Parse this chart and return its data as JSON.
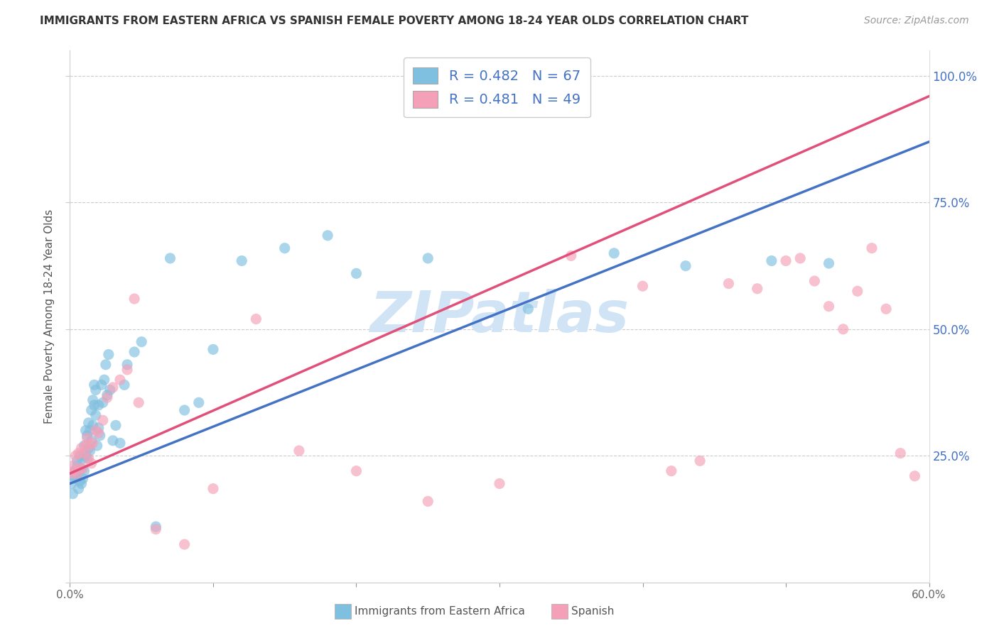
{
  "title": "IMMIGRANTS FROM EASTERN AFRICA VS SPANISH FEMALE POVERTY AMONG 18-24 YEAR OLDS CORRELATION CHART",
  "source": "Source: ZipAtlas.com",
  "ylabel": "Female Poverty Among 18-24 Year Olds",
  "x_min": 0.0,
  "x_max": 0.6,
  "y_min": 0.0,
  "y_max": 1.05,
  "legend_blue_R": "0.482",
  "legend_blue_N": "67",
  "legend_pink_R": "0.481",
  "legend_pink_N": "49",
  "legend_label_blue": "Immigrants from Eastern Africa",
  "legend_label_pink": "Spanish",
  "blue_color": "#7fbfdf",
  "pink_color": "#f4a0b8",
  "trendline_color_blue": "#4472c4",
  "trendline_color_pink": "#e0507a",
  "watermark_text": "ZIPatlas",
  "watermark_color": "#d0e4f5",
  "blue_scatter_x": [
    0.001,
    0.002,
    0.003,
    0.004,
    0.004,
    0.005,
    0.005,
    0.005,
    0.006,
    0.006,
    0.007,
    0.007,
    0.008,
    0.008,
    0.009,
    0.009,
    0.01,
    0.01,
    0.011,
    0.011,
    0.012,
    0.012,
    0.013,
    0.013,
    0.014,
    0.014,
    0.015,
    0.015,
    0.016,
    0.016,
    0.017,
    0.017,
    0.018,
    0.018,
    0.019,
    0.02,
    0.02,
    0.021,
    0.022,
    0.023,
    0.024,
    0.025,
    0.026,
    0.027,
    0.028,
    0.03,
    0.032,
    0.035,
    0.038,
    0.04,
    0.045,
    0.05,
    0.06,
    0.07,
    0.08,
    0.09,
    0.1,
    0.12,
    0.15,
    0.18,
    0.2,
    0.25,
    0.32,
    0.38,
    0.43,
    0.49,
    0.53
  ],
  "blue_scatter_y": [
    0.195,
    0.175,
    0.21,
    0.205,
    0.22,
    0.215,
    0.23,
    0.24,
    0.185,
    0.22,
    0.2,
    0.25,
    0.195,
    0.225,
    0.205,
    0.245,
    0.22,
    0.27,
    0.25,
    0.3,
    0.245,
    0.29,
    0.265,
    0.315,
    0.26,
    0.3,
    0.28,
    0.34,
    0.31,
    0.36,
    0.35,
    0.39,
    0.33,
    0.38,
    0.27,
    0.305,
    0.35,
    0.29,
    0.39,
    0.355,
    0.4,
    0.43,
    0.37,
    0.45,
    0.38,
    0.28,
    0.31,
    0.275,
    0.39,
    0.43,
    0.455,
    0.475,
    0.11,
    0.64,
    0.34,
    0.355,
    0.46,
    0.635,
    0.66,
    0.685,
    0.61,
    0.64,
    0.54,
    0.65,
    0.625,
    0.635,
    0.63
  ],
  "pink_scatter_x": [
    0.001,
    0.002,
    0.003,
    0.004,
    0.005,
    0.006,
    0.007,
    0.008,
    0.009,
    0.01,
    0.011,
    0.012,
    0.013,
    0.014,
    0.015,
    0.016,
    0.018,
    0.02,
    0.023,
    0.026,
    0.03,
    0.035,
    0.04,
    0.045,
    0.048,
    0.06,
    0.08,
    0.1,
    0.13,
    0.16,
    0.2,
    0.25,
    0.3,
    0.35,
    0.4,
    0.42,
    0.44,
    0.46,
    0.48,
    0.5,
    0.51,
    0.52,
    0.53,
    0.54,
    0.55,
    0.56,
    0.57,
    0.58,
    0.59
  ],
  "pink_scatter_y": [
    0.215,
    0.23,
    0.22,
    0.25,
    0.215,
    0.255,
    0.225,
    0.265,
    0.225,
    0.255,
    0.27,
    0.285,
    0.245,
    0.27,
    0.235,
    0.275,
    0.3,
    0.295,
    0.32,
    0.365,
    0.385,
    0.4,
    0.42,
    0.56,
    0.355,
    0.105,
    0.075,
    0.185,
    0.52,
    0.26,
    0.22,
    0.16,
    0.195,
    0.645,
    0.585,
    0.22,
    0.24,
    0.59,
    0.58,
    0.635,
    0.64,
    0.595,
    0.545,
    0.5,
    0.575,
    0.66,
    0.54,
    0.255,
    0.21
  ],
  "blue_trendline_x0": 0.0,
  "blue_trendline_y0": 0.195,
  "blue_trendline_x1": 0.6,
  "blue_trendline_y1": 0.87,
  "pink_trendline_x0": 0.0,
  "pink_trendline_y0": 0.215,
  "pink_trendline_x1": 0.6,
  "pink_trendline_y1": 0.96
}
